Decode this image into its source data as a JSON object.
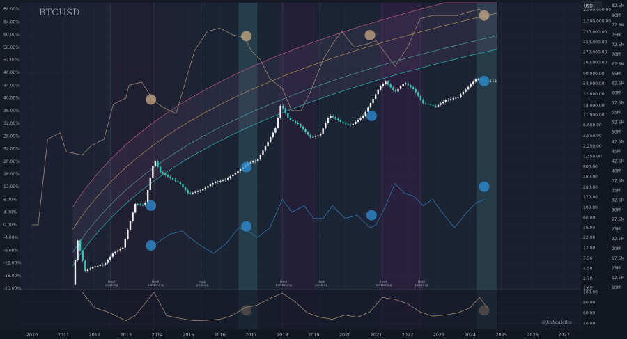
{
  "chart_data": {
    "type": "line",
    "title": "BTCUSD",
    "currency": "USD",
    "watermark": "@JoshuaMiles",
    "log_scale": true,
    "grid": true,
    "x_ticks": [
      "2010",
      "2011",
      "2012",
      "2013",
      "2014",
      "2015",
      "2016",
      "2017",
      "2018",
      "2019",
      "2020",
      "2021",
      "2022",
      "2023",
      "2024",
      "2025",
      "2026",
      "2027"
    ],
    "left_axis_ticks": [
      "68.00%",
      "64.00%",
      "60.00%",
      "56.00%",
      "52.00%",
      "48.00%",
      "44.00%",
      "40.00%",
      "36.00%",
      "32.00%",
      "28.00%",
      "24.00%",
      "20.00%",
      "16.00%",
      "12.00%",
      "8.00%",
      "4.00%",
      "0.00%",
      "-4.00%",
      "-8.00%",
      "-12.00%",
      "-16.00%",
      "-20.00%"
    ],
    "price_ticks": [
      "2,300,000.00",
      "1,300,000.00",
      "750,000.00",
      "450,000.00",
      "270,000.00",
      "160,000.00",
      "90,000.00",
      "54,000.00",
      "32,000.00",
      "18,000.00",
      "11,000.00",
      "6,600.00",
      "3,850.00",
      "2,250.00",
      "1,350.00",
      "800.00",
      "480.00",
      "280.00",
      "170.00",
      "100.00",
      "60.00",
      "36.00",
      "22.00",
      "13.00",
      "7.50",
      "4.50",
      "2.70",
      "1.65"
    ],
    "hashrate_ticks": [
      "82.5M",
      "80M",
      "77.5M",
      "75M",
      "72.5M",
      "70M",
      "67.5M",
      "65M",
      "62.5M",
      "60M",
      "57.5M",
      "55M",
      "52.5M",
      "50M",
      "47.5M",
      "45M",
      "42.5M",
      "40M",
      "37.5M",
      "35M",
      "32.5M",
      "30M",
      "27.5M",
      "25M",
      "22.5M",
      "20M",
      "17.5M",
      "15M",
      "12.5M",
      "10M"
    ],
    "oscillator_ticks": [
      "100.00",
      "80.00",
      "60.00",
      "40.00"
    ],
    "events": [
      {
        "label": [
          "Hodl",
          "peaking"
        ],
        "year": 2012.5
      },
      {
        "label": [
          "Hodl",
          "bottoming"
        ],
        "year": 2013.9
      },
      {
        "label": [
          "Hodl",
          "peaking"
        ],
        "year": 2015.4
      },
      {
        "label": [
          "Hodl",
          "bottoming"
        ],
        "year": 2018.0
      },
      {
        "label": [
          "Hodl",
          "peaking"
        ],
        "year": 2019.2
      },
      {
        "label": [
          "Hodl",
          "bottoming"
        ],
        "year": 2021.2
      },
      {
        "label": [
          "Hodl",
          "peaking"
        ],
        "year": 2022.4
      }
    ],
    "highlight_periods": [
      [
        2016.6,
        2017.2
      ],
      [
        2024.2,
        2024.85
      ]
    ],
    "series": [
      {
        "kind": "btc_price",
        "color": "#26a69a",
        "x": [
          2011.3,
          2011.45,
          2011.7,
          2012.0,
          2012.3,
          2012.6,
          2012.9,
          2013.1,
          2013.3,
          2013.6,
          2013.85,
          2013.92,
          2014.1,
          2014.4,
          2014.7,
          2015.0,
          2015.4,
          2015.8,
          2016.2,
          2016.6,
          2016.9,
          2017.2,
          2017.5,
          2017.8,
          2017.95,
          2018.2,
          2018.5,
          2018.9,
          2019.2,
          2019.5,
          2019.9,
          2020.2,
          2020.6,
          2020.9,
          2021.1,
          2021.3,
          2021.6,
          2021.9,
          2022.2,
          2022.5,
          2022.9,
          2023.2,
          2023.6,
          2023.9,
          2024.2,
          2024.5,
          2024.85
        ],
        "y": [
          2,
          20,
          4,
          5,
          5.5,
          10,
          13,
          40,
          120,
          110,
          800,
          1100,
          600,
          450,
          350,
          200,
          240,
          350,
          420,
          650,
          950,
          1100,
          2500,
          6000,
          19000,
          9000,
          7000,
          3500,
          4000,
          11000,
          7500,
          6500,
          11000,
          25000,
          45000,
          60000,
          35000,
          58000,
          40000,
          20000,
          17000,
          23000,
          27000,
          43000,
          70000,
          62000,
          62000
        ]
      },
      {
        "kind": "hodl_ratio_pct",
        "color": "#8e7f6a",
        "x": [
          2010.0,
          2010.2,
          2010.5,
          2010.9,
          2011.1,
          2011.6,
          2011.9,
          2012.3,
          2012.6,
          2012.8,
          2013.0,
          2013.1,
          2013.5,
          2013.9,
          2014.2,
          2014.6,
          2014.9,
          2015.2,
          2015.6,
          2016.0,
          2016.4,
          2016.8,
          2017.0,
          2017.3,
          2017.6,
          2018.0,
          2018.3,
          2018.6,
          2018.9,
          2019.3,
          2019.6,
          2019.9,
          2020.3,
          2020.7,
          2021.0,
          2021.3,
          2021.6,
          2022.0,
          2022.4,
          2022.8,
          2023.2,
          2023.6,
          2023.9,
          2024.3,
          2024.55
        ],
        "y": [
          0,
          0,
          27,
          29,
          23,
          22,
          25,
          27,
          38,
          39,
          40,
          44,
          45,
          39,
          37,
          35,
          45,
          55,
          61,
          62,
          60,
          59,
          55,
          52,
          46,
          43,
          36,
          36,
          42,
          52,
          57,
          61,
          56,
          57,
          58,
          54,
          50,
          56,
          65,
          66,
          66,
          66,
          67,
          68,
          65
        ]
      },
      {
        "kind": "hash_rate_pct",
        "color": "#2e6fa3",
        "x": [
          2013.7,
          2014.1,
          2014.4,
          2014.8,
          2015.3,
          2015.8,
          2016.2,
          2016.6,
          2016.9,
          2017.2,
          2017.6,
          2018.0,
          2018.3,
          2018.7,
          2019.0,
          2019.3,
          2019.6,
          2020.0,
          2020.4,
          2020.8,
          2021.0,
          2021.3,
          2021.6,
          2021.9,
          2022.2,
          2022.5,
          2022.8,
          2023.1,
          2023.5,
          2023.9,
          2024.2,
          2024.5
        ],
        "y": [
          -8,
          -5,
          -3,
          -2,
          -6,
          -9,
          -6,
          -1,
          -2,
          -4,
          -1,
          8,
          4,
          6,
          2,
          2,
          6,
          2,
          3,
          -1,
          0,
          6,
          13,
          10,
          9,
          6,
          8,
          4,
          -1,
          4,
          7,
          8
        ]
      }
    ],
    "regression_band": {
      "colors": [
        "#d0618c",
        "#c4a34f",
        "#4fb4b0",
        "#25c9c4"
      ],
      "levels_log10_offsets": [
        1.3,
        0.8,
        0.3,
        0.0
      ]
    },
    "oscillator": {
      "color": "#8e7f6a",
      "x": [
        2011.6,
        2012.0,
        2012.5,
        2013.0,
        2013.3,
        2013.7,
        2013.9,
        2014.3,
        2014.7,
        2015.2,
        2015.6,
        2016.0,
        2016.4,
        2016.8,
        2017.2,
        2017.6,
        2018.0,
        2018.4,
        2018.8,
        2019.2,
        2019.6,
        2020.0,
        2020.4,
        2020.8,
        2021.2,
        2021.6,
        2022.0,
        2022.4,
        2022.8,
        2023.2,
        2023.6,
        2024.0,
        2024.3,
        2024.55
      ],
      "y": [
        100,
        70,
        60,
        45,
        55,
        85,
        100,
        55,
        50,
        45,
        46,
        48,
        55,
        70,
        75,
        88,
        98,
        82,
        60,
        52,
        48,
        56,
        52,
        62,
        90,
        86,
        78,
        62,
        54,
        56,
        60,
        70,
        90,
        70
      ]
    },
    "markers": [
      {
        "series": "hodl_ratio_pct",
        "x": 2013.8,
        "y": 39.5,
        "color": "#c7a885"
      },
      {
        "series": "hodl_ratio_pct",
        "x": 2016.85,
        "y": 59.5,
        "color": "#c7a885"
      },
      {
        "series": "hodl_ratio_pct",
        "x": 2020.8,
        "y": 59.8,
        "color": "#c7a885"
      },
      {
        "series": "hodl_ratio_pct",
        "x": 2024.45,
        "y": 66.0,
        "color": "#c7a885"
      },
      {
        "series": "btc_price",
        "x": 2013.8,
        "y": 110,
        "color": "#2f8fd6"
      },
      {
        "series": "btc_price",
        "x": 2016.85,
        "y": 780,
        "color": "#2f8fd6"
      },
      {
        "series": "btc_price",
        "x": 2020.85,
        "y": 10500,
        "color": "#2f8fd6"
      },
      {
        "series": "btc_price",
        "x": 2024.45,
        "y": 62000,
        "color": "#2f8fd6"
      },
      {
        "series": "hash_rate_pct",
        "x": 2013.8,
        "y": -6.5,
        "color": "#2f8fd6"
      },
      {
        "series": "hash_rate_pct",
        "x": 2016.85,
        "y": -0.5,
        "color": "#2f8fd6"
      },
      {
        "series": "hash_rate_pct",
        "x": 2020.85,
        "y": 3,
        "color": "#2f8fd6"
      },
      {
        "series": "hash_rate_pct",
        "x": 2024.45,
        "y": 12,
        "color": "#2f8fd6"
      },
      {
        "series": "oscillator",
        "x": 2016.85,
        "y": 65,
        "color": "#c7a885"
      },
      {
        "series": "oscillator",
        "x": 2024.45,
        "y": 65,
        "color": "#c7a885"
      }
    ],
    "xlim": [
      2009.6,
      2027.5
    ],
    "pct_ylim": [
      -20,
      70
    ],
    "price_ylim": [
      1.65,
      3300000
    ],
    "osc_ylim": [
      30,
      105
    ]
  }
}
